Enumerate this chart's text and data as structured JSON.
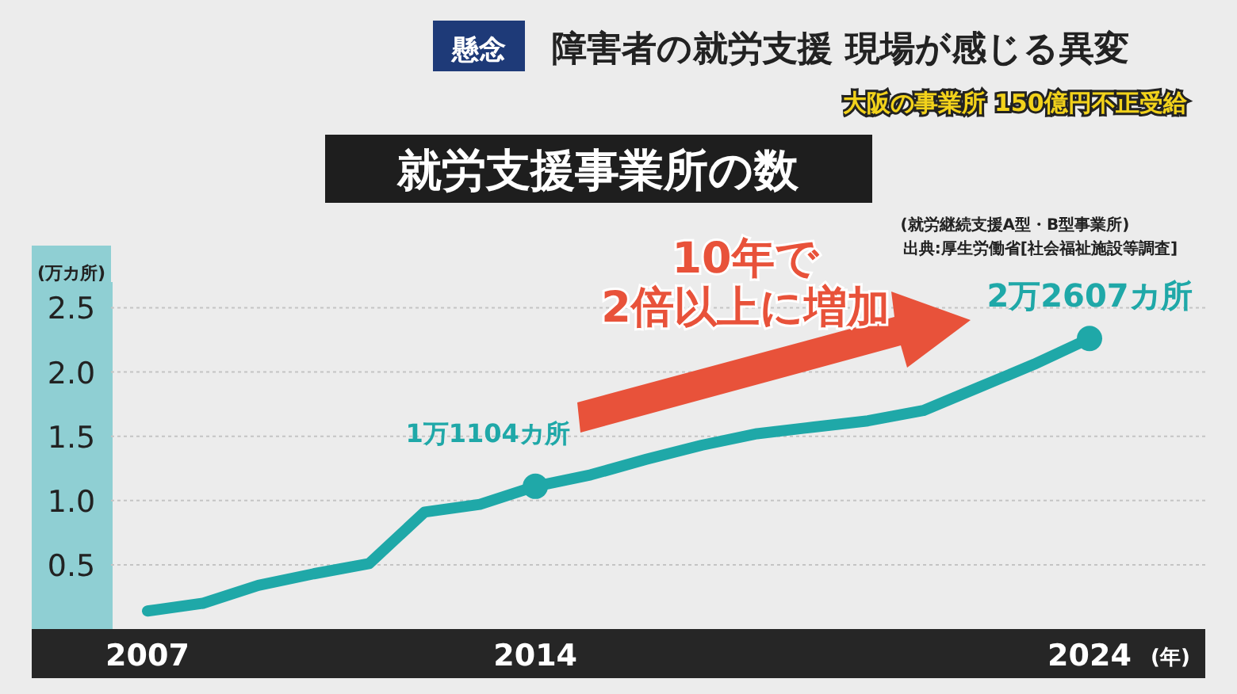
{
  "chart_data": {
    "type": "line",
    "title": "就労支援事業所の数",
    "ylabel": "(万カ所)",
    "xlabel": "(年)",
    "categories": [
      "2007",
      null,
      null,
      null,
      null,
      null,
      null,
      "2014",
      null,
      null,
      null,
      null,
      null,
      null,
      null,
      null,
      null,
      "2024"
    ],
    "series": [
      {
        "color": "#1fa8a8",
        "values": [
          0.14,
          0.2,
          0.34,
          0.43,
          0.51,
          0.91,
          0.97,
          1.1104,
          1.2,
          1.32,
          1.43,
          1.52,
          1.57,
          1.62,
          1.7,
          1.88,
          2.06,
          2.2607
        ]
      }
    ],
    "ylim": [
      0,
      2.7
    ],
    "yticks": [
      0.5,
      {
        "value": 1,
        "label": "1.0"
      },
      1.5,
      {
        "value": 2,
        "label": "2.0"
      },
      2.5
    ],
    "grid": "y",
    "marker": "none",
    "line_style": "solid",
    "annotations": [
      "懸念",
      "障害者の就労支援 現場が感じる異変",
      "大阪の事業所 150億円不正受給",
      "(就労継続支援A型・B型事業所)",
      "出典:厚生労働省[社会福祉施設等調査]",
      "10年で\n2倍以上に増加",
      {
        "text": "1万1104カ所",
        "x": "2014",
        "y": 1.1104
      },
      {
        "text": "2万2607カ所",
        "x": "2024",
        "y": 2.2607
      }
    ]
  }
}
